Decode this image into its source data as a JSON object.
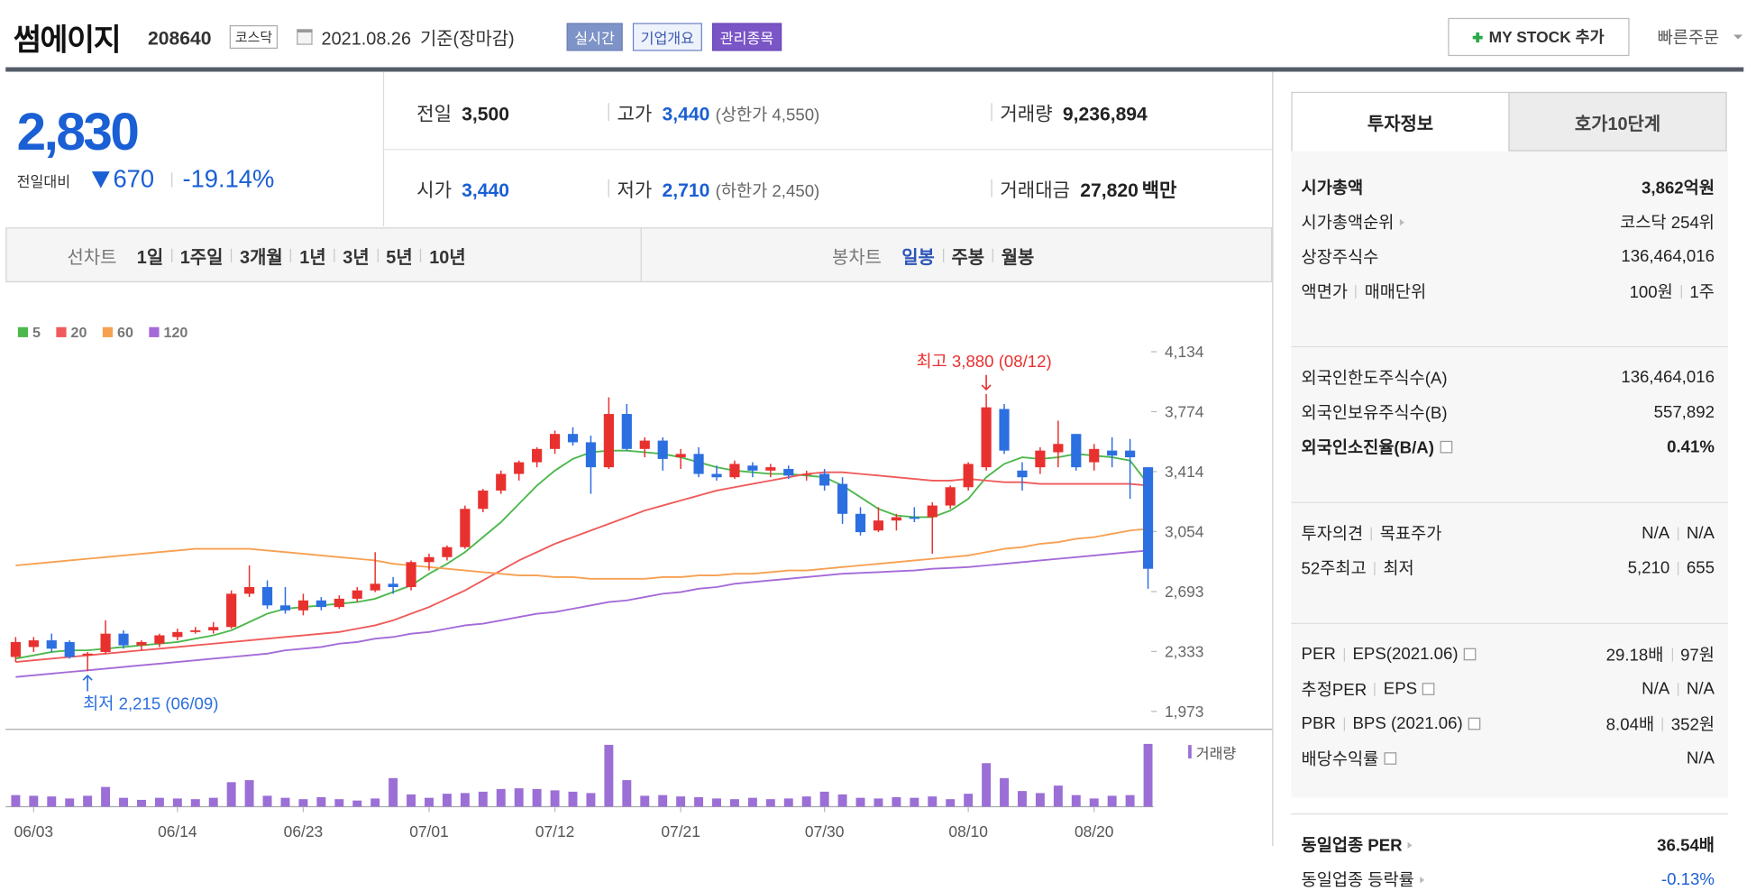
{
  "header": {
    "name": "썸에이지",
    "code": "208640",
    "market": "코스닥",
    "date": "2021.08.26",
    "basis": "기준(장마감)",
    "buttons": [
      "실시간",
      "기업개요",
      "관리종목"
    ],
    "my_stock": "MY STOCK 추가",
    "quick_order": "빠른주문"
  },
  "quote": {
    "price": "2,830",
    "change_label": "전일대비",
    "change": "670",
    "change_rate": "-19.14%",
    "rows": [
      [
        {
          "label": "전일",
          "value": "3,500"
        },
        {
          "label": "고가",
          "value": "3,440",
          "note": "(상한가 4,550)",
          "color": "#1a5fd4"
        },
        {
          "label": "거래량",
          "value": "9,236,894"
        }
      ],
      [
        {
          "label": "시가",
          "value": "3,440",
          "color": "#1a5fd4"
        },
        {
          "label": "저가",
          "value": "2,710",
          "note": "(하한가 2,450)",
          "color": "#1a5fd4"
        },
        {
          "label": "거래대금",
          "value": "27,820",
          "unit": "백만"
        }
      ]
    ]
  },
  "period_tabs": {
    "label": "선차트",
    "items": [
      "1일",
      "1주일",
      "3개월",
      "1년",
      "3년",
      "5년",
      "10년"
    ]
  },
  "candle_tabs": {
    "label": "봉차트",
    "items": [
      "일봉",
      "주봉",
      "월봉"
    ],
    "active": 0
  },
  "chart_data": {
    "type": "candlestick",
    "categories": [
      null,
      "06/03",
      null,
      null,
      null,
      null,
      null,
      null,
      null,
      "06/14",
      null,
      null,
      null,
      null,
      null,
      null,
      "06/23",
      null,
      null,
      null,
      null,
      null,
      null,
      "07/01",
      null,
      null,
      null,
      null,
      null,
      null,
      "07/12",
      null,
      null,
      null,
      null,
      null,
      null,
      "07/21",
      null,
      null,
      null,
      null,
      null,
      null,
      null,
      "07/30",
      null,
      null,
      null,
      null,
      null,
      null,
      null,
      "08/10",
      null,
      null,
      null,
      null,
      null,
      null,
      "08/20",
      null,
      null,
      null
    ],
    "candles": [
      [
        2300,
        2420,
        2270,
        2390
      ],
      [
        2360,
        2420,
        2330,
        2400
      ],
      [
        2400,
        2440,
        2330,
        2350
      ],
      [
        2390,
        2400,
        2290,
        2300
      ],
      [
        2310,
        2330,
        2215,
        2320
      ],
      [
        2330,
        2520,
        2320,
        2440
      ],
      [
        2440,
        2460,
        2350,
        2370
      ],
      [
        2370,
        2400,
        2340,
        2390
      ],
      [
        2380,
        2440,
        2360,
        2430
      ],
      [
        2420,
        2470,
        2400,
        2450
      ],
      [
        2450,
        2480,
        2440,
        2460
      ],
      [
        2460,
        2510,
        2440,
        2480
      ],
      [
        2480,
        2700,
        2470,
        2680
      ],
      [
        2680,
        2850,
        2660,
        2720
      ],
      [
        2720,
        2760,
        2590,
        2610
      ],
      [
        2610,
        2720,
        2560,
        2580
      ],
      [
        2580,
        2680,
        2550,
        2640
      ],
      [
        2640,
        2660,
        2580,
        2600
      ],
      [
        2600,
        2670,
        2590,
        2650
      ],
      [
        2650,
        2720,
        2630,
        2700
      ],
      [
        2700,
        2930,
        2690,
        2740
      ],
      [
        2740,
        2780,
        2680,
        2720
      ],
      [
        2720,
        2880,
        2700,
        2870
      ],
      [
        2870,
        2920,
        2820,
        2900
      ],
      [
        2900,
        2970,
        2880,
        2960
      ],
      [
        2960,
        3210,
        2950,
        3190
      ],
      [
        3190,
        3310,
        3170,
        3300
      ],
      [
        3300,
        3420,
        3280,
        3400
      ],
      [
        3400,
        3480,
        3360,
        3470
      ],
      [
        3470,
        3560,
        3440,
        3550
      ],
      [
        3550,
        3660,
        3520,
        3640
      ],
      [
        3640,
        3680,
        3570,
        3590
      ],
      [
        3590,
        3630,
        3280,
        3440
      ],
      [
        3440,
        3860,
        3430,
        3760
      ],
      [
        3760,
        3820,
        3540,
        3550
      ],
      [
        3550,
        3620,
        3500,
        3600
      ],
      [
        3600,
        3620,
        3420,
        3490
      ],
      [
        3500,
        3550,
        3430,
        3520
      ],
      [
        3520,
        3560,
        3380,
        3400
      ],
      [
        3400,
        3450,
        3360,
        3380
      ],
      [
        3380,
        3480,
        3370,
        3460
      ],
      [
        3450,
        3470,
        3380,
        3420
      ],
      [
        3420,
        3460,
        3380,
        3440
      ],
      [
        3430,
        3450,
        3370,
        3390
      ],
      [
        3400,
        3420,
        3360,
        3400
      ],
      [
        3400,
        3430,
        3300,
        3330
      ],
      [
        3340,
        3380,
        3100,
        3160
      ],
      [
        3160,
        3200,
        3030,
        3050
      ],
      [
        3060,
        3200,
        3050,
        3120
      ],
      [
        3120,
        3160,
        3060,
        3140
      ],
      [
        3140,
        3200,
        3110,
        3130
      ],
      [
        3140,
        3230,
        2920,
        3210
      ],
      [
        3210,
        3330,
        3190,
        3320
      ],
      [
        3320,
        3470,
        3300,
        3460
      ],
      [
        3440,
        3880,
        3420,
        3800
      ],
      [
        3790,
        3820,
        3520,
        3540
      ],
      [
        3420,
        3470,
        3300,
        3380
      ],
      [
        3440,
        3560,
        3400,
        3540
      ],
      [
        3530,
        3720,
        3440,
        3580
      ],
      [
        3640,
        3640,
        3420,
        3440
      ],
      [
        3470,
        3580,
        3420,
        3550
      ],
      [
        3540,
        3620,
        3440,
        3510
      ],
      [
        3540,
        3610,
        3250,
        3500
      ],
      [
        3440,
        3440,
        2710,
        2830
      ]
    ],
    "candle_colors": {
      "up": "#e8312f",
      "down": "#2c6fe0"
    },
    "series": [
      {
        "name": "5",
        "color": "#4cb84c",
        "values": [
          2290,
          2310,
          2330,
          2340,
          2340,
          2350,
          2360,
          2370,
          2380,
          2390,
          2410,
          2430,
          2460,
          2510,
          2560,
          2590,
          2600,
          2610,
          2620,
          2630,
          2650,
          2690,
          2730,
          2800,
          2860,
          2930,
          3020,
          3110,
          3220,
          3330,
          3420,
          3490,
          3530,
          3540,
          3540,
          3530,
          3520,
          3500,
          3470,
          3440,
          3420,
          3410,
          3400,
          3400,
          3390,
          3380,
          3330,
          3260,
          3190,
          3150,
          3140,
          3140,
          3180,
          3250,
          3380,
          3460,
          3500,
          3490,
          3500,
          3520,
          3510,
          3500,
          3480,
          3340
        ]
      },
      {
        "name": "20",
        "color": "#f05a5a",
        "values": [
          2270,
          2280,
          2290,
          2300,
          2310,
          2320,
          2330,
          2340,
          2350,
          2360,
          2370,
          2380,
          2390,
          2400,
          2410,
          2420,
          2430,
          2440,
          2450,
          2470,
          2490,
          2520,
          2560,
          2600,
          2650,
          2700,
          2760,
          2820,
          2880,
          2930,
          2980,
          3020,
          3060,
          3100,
          3140,
          3180,
          3210,
          3240,
          3270,
          3300,
          3320,
          3340,
          3360,
          3380,
          3400,
          3410,
          3410,
          3400,
          3390,
          3380,
          3370,
          3360,
          3360,
          3370,
          3360,
          3350,
          3350,
          3340,
          3340,
          3340,
          3340,
          3340,
          3340,
          3330
        ]
      },
      {
        "name": "60",
        "color": "#f7a052",
        "values": [
          2850,
          2860,
          2870,
          2880,
          2890,
          2900,
          2910,
          2920,
          2930,
          2940,
          2950,
          2950,
          2950,
          2950,
          2940,
          2930,
          2920,
          2910,
          2900,
          2890,
          2880,
          2860,
          2850,
          2840,
          2830,
          2820,
          2810,
          2800,
          2790,
          2790,
          2780,
          2780,
          2770,
          2770,
          2770,
          2770,
          2780,
          2780,
          2790,
          2790,
          2800,
          2800,
          2810,
          2820,
          2820,
          2830,
          2840,
          2850,
          2860,
          2870,
          2880,
          2890,
          2900,
          2910,
          2930,
          2950,
          2960,
          2980,
          2990,
          3010,
          3020,
          3040,
          3060,
          3070
        ]
      },
      {
        "name": "120",
        "color": "#a46ad8",
        "values": [
          2180,
          2190,
          2200,
          2210,
          2220,
          2230,
          2240,
          2250,
          2260,
          2270,
          2280,
          2290,
          2300,
          2310,
          2320,
          2340,
          2350,
          2360,
          2380,
          2390,
          2410,
          2420,
          2440,
          2450,
          2470,
          2490,
          2500,
          2520,
          2540,
          2560,
          2570,
          2590,
          2610,
          2630,
          2640,
          2660,
          2680,
          2690,
          2710,
          2720,
          2740,
          2750,
          2760,
          2770,
          2780,
          2790,
          2800,
          2805,
          2810,
          2815,
          2820,
          2830,
          2835,
          2840,
          2850,
          2860,
          2870,
          2880,
          2890,
          2900,
          2910,
          2920,
          2930,
          2940
        ]
      }
    ],
    "volume": {
      "name": "거래량",
      "color": "#9b6fd6",
      "values": [
        1700000,
        1600000,
        1500000,
        1200000,
        1600000,
        2900000,
        1300000,
        1000000,
        1300000,
        1200000,
        1100000,
        1300000,
        3600000,
        3900000,
        1600000,
        1300000,
        1100000,
        1400000,
        1100000,
        900000,
        1200000,
        4200000,
        1800000,
        1300000,
        1900000,
        2000000,
        2200000,
        2600000,
        2700000,
        2600000,
        2400000,
        2200000,
        2000000,
        9100000,
        3900000,
        1600000,
        1700000,
        1500000,
        1400000,
        1200000,
        1100000,
        1300000,
        1100000,
        1200000,
        1500000,
        2200000,
        1800000,
        1300000,
        1200000,
        1400000,
        1300000,
        1500000,
        1100000,
        1900000,
        6400000,
        4200000,
        2300000,
        2000000,
        3100000,
        1700000,
        1200000,
        1600000,
        1700000,
        9236894
      ]
    },
    "ylim": [
      1872,
      4228
    ],
    "yticks": [
      {
        "value": 1973,
        "label": "1,973"
      },
      {
        "value": 2333,
        "label": "2,333"
      },
      {
        "value": 2693,
        "label": "2,693"
      },
      {
        "value": 3054,
        "label": "3,054"
      },
      {
        "value": 3414,
        "label": "3,414"
      },
      {
        "value": 3774,
        "label": "3,774"
      },
      {
        "value": 4134,
        "label": "4,134"
      }
    ],
    "annotations": {
      "high": "최고 3,880 (08/12)",
      "low": "최저 2,215 (06/09)"
    }
  },
  "invest_info": {
    "tabs": [
      "투자정보",
      "호가10단계"
    ],
    "active": 0,
    "groups": [
      [
        {
          "label": [
            "시가총액"
          ],
          "value": [
            "3,862억원"
          ],
          "bold": true
        },
        {
          "label": [
            "시가총액순위"
          ],
          "link": true,
          "value": [
            "코스닥 254위"
          ]
        },
        {
          "label": [
            "상장주식수"
          ],
          "value": [
            "136,464,016"
          ]
        },
        {
          "label": [
            "액면가",
            "매매단위"
          ],
          "value": [
            "100원",
            "1주"
          ]
        }
      ],
      [
        {
          "label": [
            "외국인한도주식수(A)"
          ],
          "value": [
            "136,464,016"
          ]
        },
        {
          "label": [
            "외국인보유주식수(B)"
          ],
          "value": [
            "557,892"
          ]
        },
        {
          "label": [
            "외국인소진율(B/A)"
          ],
          "help": true,
          "bold": true,
          "value": [
            "0.41%"
          ]
        }
      ],
      [
        {
          "label": [
            "투자의견",
            "목표주가"
          ],
          "value": [
            "N/A",
            "N/A"
          ]
        },
        {
          "label": [
            "52주최고",
            "최저"
          ],
          "value": [
            "5,210",
            "655"
          ]
        }
      ],
      [
        {
          "label": [
            "PER",
            "EPS(2021.06)"
          ],
          "help": true,
          "value": [
            "29.18배",
            "97원"
          ]
        },
        {
          "label": [
            "추정PER",
            "EPS"
          ],
          "help": true,
          "value": [
            "N/A",
            "N/A"
          ]
        },
        {
          "label": [
            "PBR",
            "BPS (2021.06)"
          ],
          "help": true,
          "value": [
            "8.04배",
            "352원"
          ]
        },
        {
          "label": [
            "배당수익률"
          ],
          "help": true,
          "value": [
            "N/A"
          ]
        }
      ],
      [
        {
          "label": [
            "동일업종 PER"
          ],
          "link": true,
          "bold": true,
          "value": [
            "36.54배"
          ]
        },
        {
          "label": [
            "동일업종 등락률"
          ],
          "link": true,
          "value": [
            "-0.13%"
          ],
          "color": "#1a5fd4"
        }
      ]
    ]
  }
}
